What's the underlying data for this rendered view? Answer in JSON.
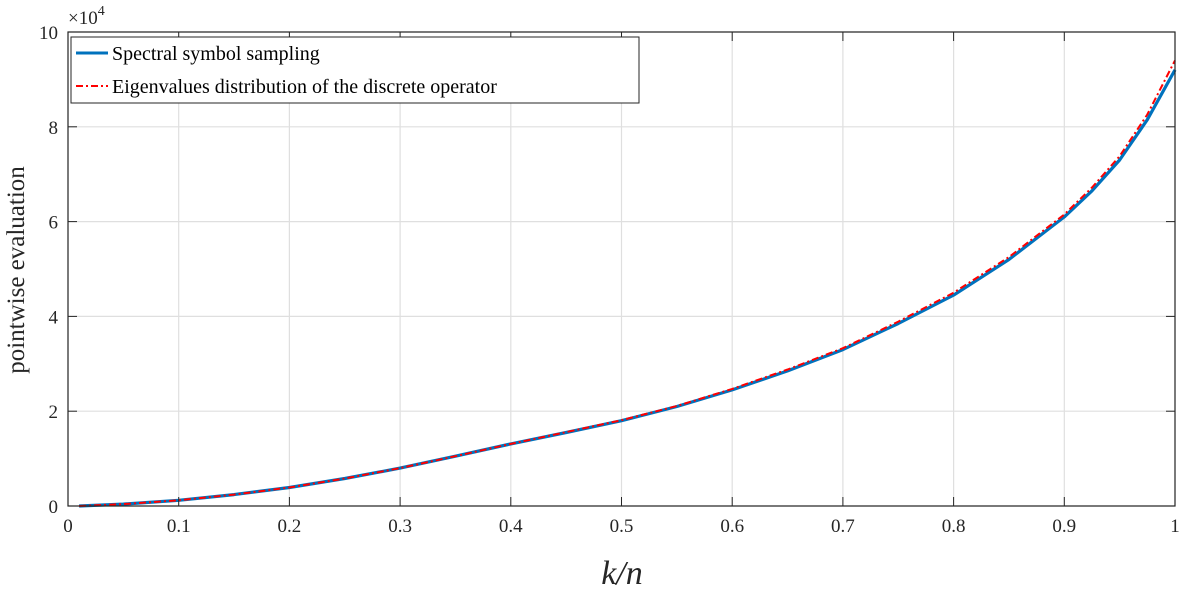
{
  "chart_data": {
    "type": "line",
    "title": "",
    "xlabel": "k/n",
    "ylabel": "pointwise evaluation",
    "y_exponent_label": "×10",
    "y_exponent_power": "4",
    "xlim": [
      0,
      1
    ],
    "ylim": [
      0,
      100000
    ],
    "x_ticks": [
      0,
      0.1,
      0.2,
      0.3,
      0.4,
      0.5,
      0.6,
      0.7,
      0.8,
      0.9,
      1
    ],
    "x_tick_labels": [
      "0",
      "0.1",
      "0.2",
      "0.3",
      "0.4",
      "0.5",
      "0.6",
      "0.7",
      "0.8",
      "0.9",
      "1"
    ],
    "y_ticks": [
      0,
      20000,
      40000,
      60000,
      80000,
      100000
    ],
    "y_tick_labels": [
      "0",
      "2",
      "4",
      "6",
      "8",
      "10"
    ],
    "grid": true,
    "legend_position": "top-left",
    "x": [
      0.01,
      0.05,
      0.1,
      0.15,
      0.2,
      0.25,
      0.3,
      0.35,
      0.4,
      0.45,
      0.5,
      0.55,
      0.6,
      0.65,
      0.7,
      0.75,
      0.8,
      0.85,
      0.9,
      0.925,
      0.95,
      0.975,
      1.0
    ],
    "series": [
      {
        "name": "Spectral symbol sampling",
        "color": "#0072bd",
        "style": "solid",
        "values": [
          0,
          400,
          1200,
          2400,
          3900,
          5800,
          8000,
          10500,
          13100,
          15500,
          18000,
          21000,
          24500,
          28500,
          33000,
          38500,
          44500,
          52000,
          61000,
          66500,
          73000,
          81500,
          92000
        ]
      },
      {
        "name": "Eigenvalues distribution of the discrete operator",
        "color": "#ff0000",
        "style": "dashdot",
        "values": [
          0,
          400,
          1200,
          2400,
          3900,
          5800,
          8000,
          10500,
          13100,
          15600,
          18100,
          21100,
          24700,
          28800,
          33300,
          38900,
          45000,
          52500,
          61500,
          67200,
          73800,
          82600,
          94000
        ]
      }
    ]
  },
  "colors": {
    "axis": "#262626",
    "grid": "#dfdfdf"
  }
}
